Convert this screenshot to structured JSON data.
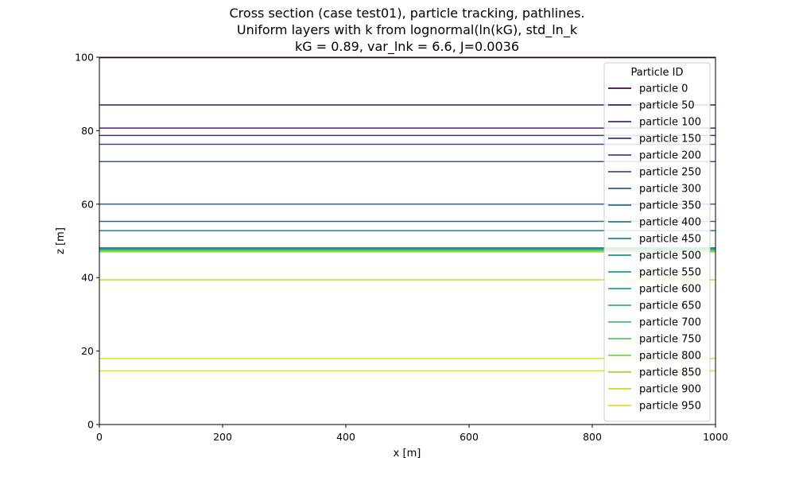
{
  "chart_data": {
    "type": "line",
    "title": [
      "Cross section (case test01), particle tracking, pathlines.",
      "Uniform layers with k from lognormal(ln(kG), std_ln_k",
      "kG = 0.89, var_lnk = 6.6, J=0.0036"
    ],
    "xlabel": "x [m]",
    "ylabel": "z [m]",
    "xlim": [
      0,
      1000
    ],
    "ylim": [
      0,
      100
    ],
    "xticks": [
      0,
      200,
      400,
      600,
      800,
      1000
    ],
    "yticks": [
      0,
      20,
      40,
      60,
      80,
      100
    ],
    "grid": false,
    "legend": {
      "title": "Particle ID",
      "placement": "upper-right"
    },
    "x": [
      0,
      1000
    ],
    "series": [
      {
        "name": "particle 0",
        "color": "#440154",
        "values": [
          99.9,
          99.9
        ]
      },
      {
        "name": "particle 50",
        "color": "#471365",
        "values": [
          87.0,
          87.0
        ]
      },
      {
        "name": "particle 100",
        "color": "#482475",
        "values": [
          80.7,
          80.7
        ]
      },
      {
        "name": "particle 150",
        "color": "#463480",
        "values": [
          78.7,
          78.7
        ]
      },
      {
        "name": "particle 200",
        "color": "#414487",
        "values": [
          76.3,
          76.3
        ]
      },
      {
        "name": "particle 250",
        "color": "#3b528b",
        "values": [
          71.6,
          71.6
        ]
      },
      {
        "name": "particle 300",
        "color": "#355f8d",
        "values": [
          60.0,
          60.0
        ]
      },
      {
        "name": "particle 350",
        "color": "#2f6c8e",
        "values": [
          55.3,
          55.3
        ]
      },
      {
        "name": "particle 400",
        "color": "#2a788e",
        "values": [
          52.8,
          52.8
        ]
      },
      {
        "name": "particle 450",
        "color": "#25848e",
        "values": [
          48.1,
          48.1
        ]
      },
      {
        "name": "particle 500",
        "color": "#21918c",
        "values": [
          47.9,
          47.9
        ]
      },
      {
        "name": "particle 550",
        "color": "#1e9c89",
        "values": [
          47.7,
          47.7
        ]
      },
      {
        "name": "particle 600",
        "color": "#22a884",
        "values": [
          47.6,
          47.6
        ]
      },
      {
        "name": "particle 650",
        "color": "#2fb47c",
        "values": [
          47.5,
          47.5
        ]
      },
      {
        "name": "particle 700",
        "color": "#44bf70",
        "values": [
          47.4,
          47.4
        ]
      },
      {
        "name": "particle 750",
        "color": "#5ec962",
        "values": [
          47.3,
          47.3
        ]
      },
      {
        "name": "particle 800",
        "color": "#7ad151",
        "values": [
          47.2,
          47.2
        ]
      },
      {
        "name": "particle 850",
        "color": "#9bd93c",
        "values": [
          47.0,
          47.0
        ]
      },
      {
        "name": "particle 900",
        "color": "#bddf26",
        "values": [
          39.4,
          39.4
        ]
      },
      {
        "name": "particle 950",
        "color": "#dfe318",
        "values": [
          18.0,
          18.0
        ]
      }
    ],
    "extra_line": {
      "color": "#dfe318",
      "values": [
        14.6,
        14.6
      ]
    }
  }
}
